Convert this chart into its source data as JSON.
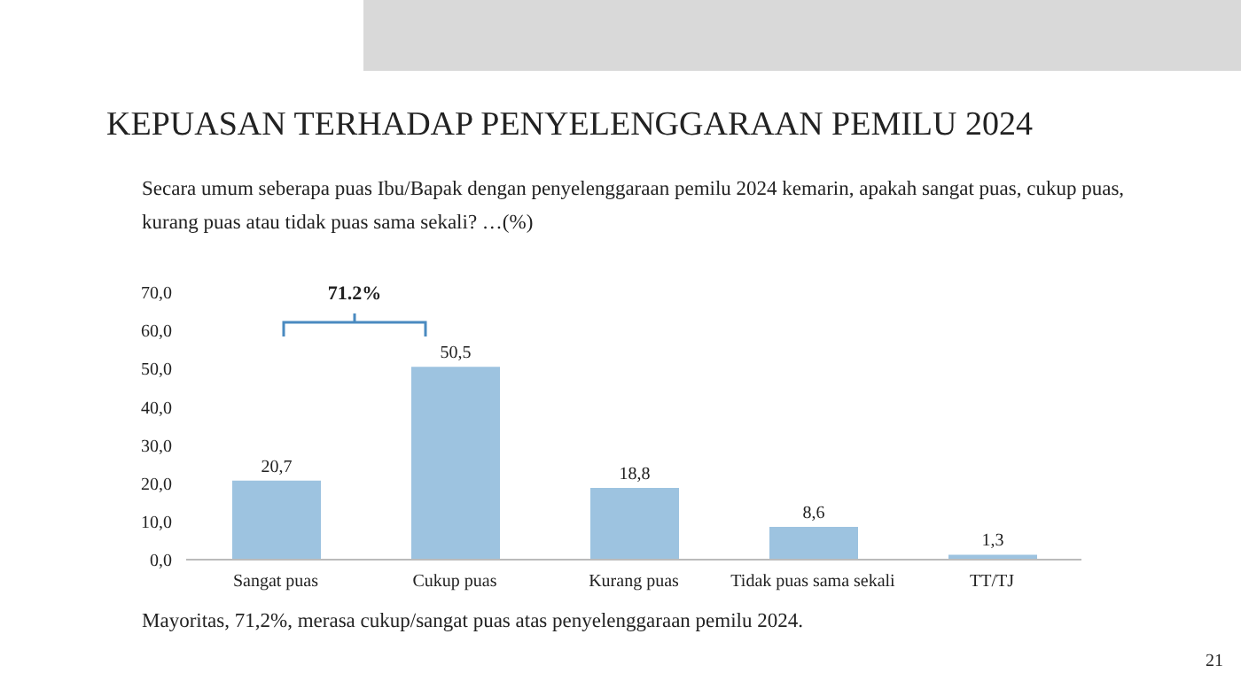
{
  "chart_data": {
    "type": "bar",
    "title": "KEPUASAN TERHADAP PENYELENGGARAAN PEMILU 2024",
    "subtitle": "Secara umum seberapa puas Ibu/Bapak dengan penyelenggaraan pemilu 2024 kemarin, apakah sangat puas, cukup puas, kurang puas atau tidak puas sama sekali? …(%)",
    "categories": [
      "Sangat puas",
      "Cukup puas",
      "Kurang puas",
      "Tidak puas sama sekali",
      "TT/TJ"
    ],
    "values": [
      20.7,
      50.5,
      18.8,
      8.6,
      1.3
    ],
    "value_labels": [
      "20,7",
      "50,5",
      "18,8",
      "8,6",
      "1,3"
    ],
    "color": "#9dc3e0",
    "ylim": [
      0,
      70
    ],
    "yticks": [
      {
        "value": 0,
        "label": "0,0"
      },
      {
        "value": 10,
        "label": "10,0"
      },
      {
        "value": 20,
        "label": "20,0"
      },
      {
        "value": 30,
        "label": "30,0"
      },
      {
        "value": 40,
        "label": "40,0"
      },
      {
        "value": 50,
        "label": "50,0"
      },
      {
        "value": 60,
        "label": "60,0"
      },
      {
        "value": 70,
        "label": "70,0"
      }
    ],
    "grid": false,
    "legend": false,
    "annotations": [
      "71.2%",
      "Mayoritas, 71,2%, merasa cukup/sangat puas atas penyelenggaraan pemilu 2024.",
      "21"
    ]
  }
}
